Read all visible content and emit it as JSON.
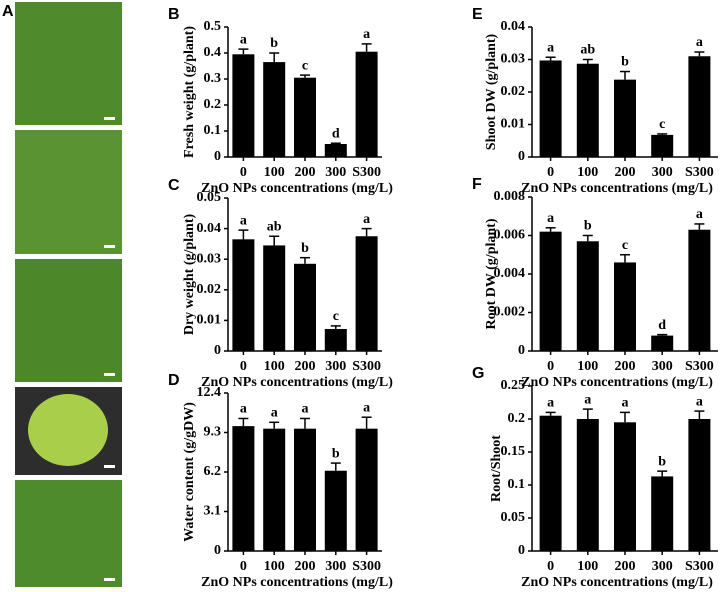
{
  "figure": {
    "photo_label": "A"
  },
  "chart_data": [
    {
      "type": "bar",
      "panel_label": "B",
      "ylabel": "Fresh weight (g/plant)",
      "xlabel": "ZnO NPs concentrations (mg/L)",
      "categories": [
        "0",
        "100",
        "200",
        "300",
        "S300"
      ],
      "values": [
        0.395,
        0.365,
        0.305,
        0.05,
        0.405
      ],
      "errors": [
        0.02,
        0.035,
        0.01,
        0.003,
        0.03
      ],
      "annotations": [
        "a",
        "b",
        "c",
        "d",
        "a"
      ],
      "color": "#000000",
      "ylim": [
        0,
        0.5
      ],
      "yticks": [
        0,
        0.1,
        0.2,
        0.3,
        0.4,
        0.5
      ]
    },
    {
      "type": "bar",
      "panel_label": "C",
      "ylabel": "Dry weight (g/plant)",
      "xlabel": "ZnO NPs concentrations (mg/L)",
      "categories": [
        "0",
        "100",
        "200",
        "300",
        "S300"
      ],
      "values": [
        0.0365,
        0.0345,
        0.0285,
        0.0072,
        0.0375
      ],
      "errors": [
        0.003,
        0.003,
        0.002,
        0.001,
        0.0025
      ],
      "annotations": [
        "a",
        "ab",
        "b",
        "c",
        "a"
      ],
      "color": "#000000",
      "ylim": [
        0,
        0.05
      ],
      "yticks": [
        0,
        0.01,
        0.02,
        0.03,
        0.04,
        0.05
      ]
    },
    {
      "type": "bar",
      "panel_label": "D",
      "ylabel": "Water content (g/gDW)",
      "xlabel": "ZnO NPs concentrations (mg/L)",
      "categories": [
        "0",
        "100",
        "200",
        "300",
        "S300"
      ],
      "values": [
        9.8,
        9.6,
        9.6,
        6.3,
        9.6
      ],
      "errors": [
        0.6,
        0.5,
        0.8,
        0.6,
        0.9
      ],
      "annotations": [
        "a",
        "a",
        "a",
        "b",
        "a"
      ],
      "color": "#000000",
      "ylim": [
        0,
        12.4
      ],
      "yticks": [
        0,
        3.1,
        6.2,
        9.3,
        12.4
      ]
    },
    {
      "type": "bar",
      "panel_label": "E",
      "ylabel": "Shoot DW (g/plant)",
      "xlabel": "ZnO NPs concentrations (mg/L)",
      "categories": [
        "0",
        "100",
        "200",
        "300",
        "S300"
      ],
      "values": [
        0.0297,
        0.0287,
        0.0238,
        0.0068,
        0.031
      ],
      "errors": [
        0.001,
        0.0013,
        0.0025,
        0.0003,
        0.0013
      ],
      "annotations": [
        "a",
        "ab",
        "b",
        "c",
        "a"
      ],
      "color": "#000000",
      "ylim": [
        0,
        0.04
      ],
      "yticks": [
        0,
        0.01,
        0.02,
        0.03,
        0.04
      ]
    },
    {
      "type": "bar",
      "panel_label": "F",
      "ylabel": "Root DW (g/plant)",
      "xlabel": "ZnO NPs concentrations (mg/L)",
      "categories": [
        "0",
        "100",
        "200",
        "300",
        "S300"
      ],
      "values": [
        0.0062,
        0.0057,
        0.0046,
        0.0008,
        0.0063
      ],
      "errors": [
        0.0002,
        0.0003,
        0.0004,
        5e-05,
        0.0003
      ],
      "annotations": [
        "a",
        "b",
        "c",
        "d",
        "a"
      ],
      "color": "#000000",
      "ylim": [
        0,
        0.008
      ],
      "yticks": [
        0,
        0.002,
        0.004,
        0.006,
        0.008
      ]
    },
    {
      "type": "bar",
      "panel_label": "G",
      "ylabel": "Root/Shoot",
      "xlabel": "ZnO NPs concentrations (mg/L)",
      "categories": [
        "0",
        "100",
        "200",
        "300",
        "S300"
      ],
      "values": [
        0.205,
        0.2,
        0.195,
        0.113,
        0.2
      ],
      "errors": [
        0.005,
        0.015,
        0.015,
        0.008,
        0.012
      ],
      "annotations": [
        "a",
        "a",
        "a",
        "b",
        "a"
      ],
      "color": "#000000",
      "ylim": [
        0,
        0.25
      ],
      "yticks": [
        0,
        0.05,
        0.1,
        0.15,
        0.2,
        0.25
      ]
    }
  ]
}
